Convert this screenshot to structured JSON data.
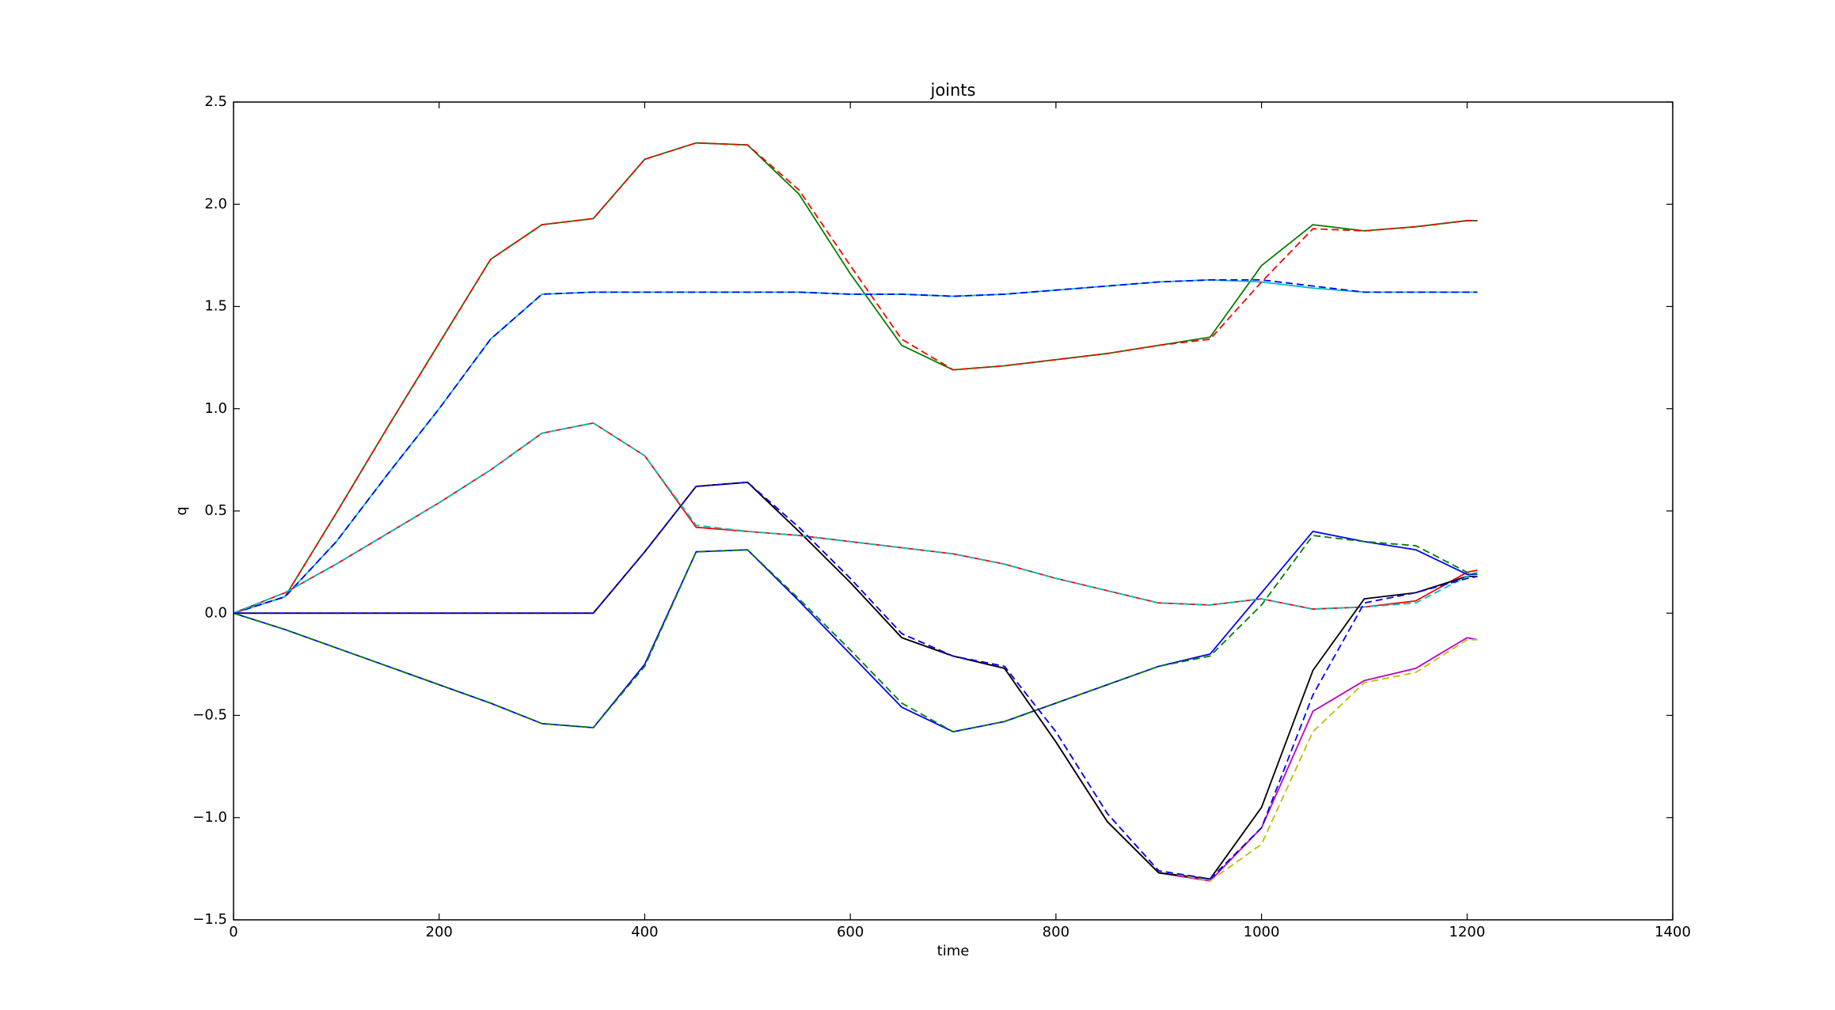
{
  "chart_data": {
    "type": "line",
    "title": "joints",
    "x_label": "time",
    "y_label": "q",
    "xlim": [
      0,
      1400
    ],
    "xticks": [
      0,
      200,
      400,
      600,
      800,
      1000,
      1200,
      1400
    ],
    "ylim": [
      -1.5,
      2.5
    ],
    "yticks": [
      {
        "value": -1.5,
        "label": "−1.5"
      },
      {
        "value": -1.0,
        "label": "−1.0"
      },
      {
        "value": -0.5,
        "label": "−0.5"
      },
      {
        "value": 0.0,
        "label": "0.0"
      },
      {
        "value": 0.5,
        "label": "0.5"
      },
      {
        "value": 1.0,
        "label": "1.0"
      },
      {
        "value": 1.5,
        "label": "1.5"
      },
      {
        "value": 2.0,
        "label": "2.0"
      },
      {
        "value": 2.5,
        "label": "2.5"
      }
    ],
    "grid": false,
    "x": [
      0,
      50,
      100,
      150,
      200,
      250,
      300,
      350,
      400,
      450,
      500,
      550,
      600,
      650,
      700,
      750,
      800,
      850,
      900,
      950,
      1000,
      1050,
      1100,
      1150,
      1200,
      1210
    ],
    "series": [
      {
        "color": "#008000",
        "style": "solid",
        "values": [
          0,
          0.08,
          0.49,
          0.91,
          1.32,
          1.73,
          1.9,
          1.93,
          2.22,
          2.3,
          2.29,
          2.05,
          1.66,
          1.31,
          1.19,
          1.21,
          1.24,
          1.27,
          1.31,
          1.35,
          1.7,
          1.9,
          1.87,
          1.89,
          1.92,
          1.92
        ]
      },
      {
        "color": "#00bfbf",
        "style": "solid",
        "values": [
          0,
          0.08,
          0.35,
          0.68,
          1.0,
          1.34,
          1.56,
          1.57,
          1.57,
          1.57,
          1.57,
          1.57,
          1.56,
          1.56,
          1.55,
          1.56,
          1.58,
          1.6,
          1.62,
          1.63,
          1.62,
          1.59,
          1.57,
          1.57,
          1.57,
          1.57
        ]
      },
      {
        "color": "#ff0000",
        "style": "solid",
        "values": [
          0,
          0.1,
          0.24,
          0.39,
          0.54,
          0.7,
          0.88,
          0.93,
          0.77,
          0.42,
          0.4,
          0.38,
          0.35,
          0.32,
          0.29,
          0.24,
          0.17,
          0.11,
          0.05,
          0.04,
          0.07,
          0.02,
          0.03,
          0.06,
          0.2,
          0.21
        ]
      },
      {
        "color": "#0000ff",
        "style": "solid",
        "values": [
          0,
          -0.08,
          -0.17,
          -0.26,
          -0.35,
          -0.44,
          -0.54,
          -0.56,
          -0.25,
          0.3,
          0.31,
          0.06,
          -0.2,
          -0.46,
          -0.58,
          -0.53,
          -0.44,
          -0.35,
          -0.26,
          -0.2,
          0.1,
          0.4,
          0.35,
          0.31,
          0.19,
          0.19
        ]
      },
      {
        "color": "#bf00bf",
        "style": "solid",
        "values": [
          0,
          0,
          0,
          0,
          0,
          0,
          0,
          0,
          0.3,
          0.62,
          0.64,
          0.4,
          0.15,
          -0.12,
          -0.21,
          -0.27,
          -0.63,
          -1.02,
          -1.27,
          -1.31,
          -1.05,
          -0.48,
          -0.33,
          -0.27,
          -0.12,
          -0.13
        ]
      },
      {
        "color": "#000000",
        "style": "solid",
        "values": [
          0,
          0,
          0,
          0,
          0,
          0,
          0,
          0,
          0.3,
          0.62,
          0.64,
          0.4,
          0.15,
          -0.12,
          -0.21,
          -0.27,
          -0.63,
          -1.02,
          -1.27,
          -1.3,
          -0.95,
          -0.28,
          0.07,
          0.1,
          0.18,
          0.18
        ]
      },
      {
        "color": "#ff0000",
        "style": "dashed",
        "values": [
          0,
          0.08,
          0.49,
          0.91,
          1.32,
          1.73,
          1.9,
          1.93,
          2.22,
          2.3,
          2.29,
          2.07,
          1.7,
          1.34,
          1.19,
          1.21,
          1.24,
          1.27,
          1.31,
          1.34,
          1.62,
          1.88,
          1.87,
          1.89,
          1.92,
          1.92
        ]
      },
      {
        "color": "#0000ff",
        "style": "dashed",
        "values": [
          0,
          0.08,
          0.35,
          0.68,
          1.0,
          1.34,
          1.56,
          1.57,
          1.57,
          1.57,
          1.57,
          1.57,
          1.56,
          1.56,
          1.55,
          1.56,
          1.58,
          1.6,
          1.62,
          1.63,
          1.63,
          1.6,
          1.57,
          1.57,
          1.57,
          1.57
        ]
      },
      {
        "color": "#00bfbf",
        "style": "dashed",
        "values": [
          0,
          0.1,
          0.24,
          0.39,
          0.54,
          0.7,
          0.88,
          0.93,
          0.77,
          0.43,
          0.4,
          0.38,
          0.35,
          0.32,
          0.29,
          0.24,
          0.17,
          0.11,
          0.05,
          0.04,
          0.07,
          0.02,
          0.03,
          0.05,
          0.18,
          0.2
        ]
      },
      {
        "color": "#008000",
        "style": "dashed",
        "values": [
          0,
          -0.08,
          -0.17,
          -0.26,
          -0.35,
          -0.44,
          -0.54,
          -0.56,
          -0.26,
          0.3,
          0.31,
          0.07,
          -0.18,
          -0.44,
          -0.58,
          -0.53,
          -0.44,
          -0.35,
          -0.26,
          -0.21,
          0.04,
          0.38,
          0.35,
          0.33,
          0.2,
          0.19
        ]
      },
      {
        "color": "#bfbf00",
        "style": "dashed",
        "values": [
          0,
          0,
          0,
          0,
          0,
          0,
          0,
          0,
          0.3,
          0.62,
          0.64,
          0.42,
          0.17,
          -0.1,
          -0.21,
          -0.26,
          -0.58,
          -0.98,
          -1.26,
          -1.31,
          -1.13,
          -0.58,
          -0.34,
          -0.29,
          -0.13,
          -0.13
        ]
      },
      {
        "color": "#0000ff",
        "style": "dashed",
        "values": [
          0,
          0,
          0,
          0,
          0,
          0,
          0,
          0,
          0.3,
          0.62,
          0.64,
          0.42,
          0.17,
          -0.1,
          -0.21,
          -0.26,
          -0.58,
          -0.98,
          -1.26,
          -1.3,
          -1.05,
          -0.4,
          0.05,
          0.1,
          0.17,
          0.18
        ]
      }
    ]
  }
}
